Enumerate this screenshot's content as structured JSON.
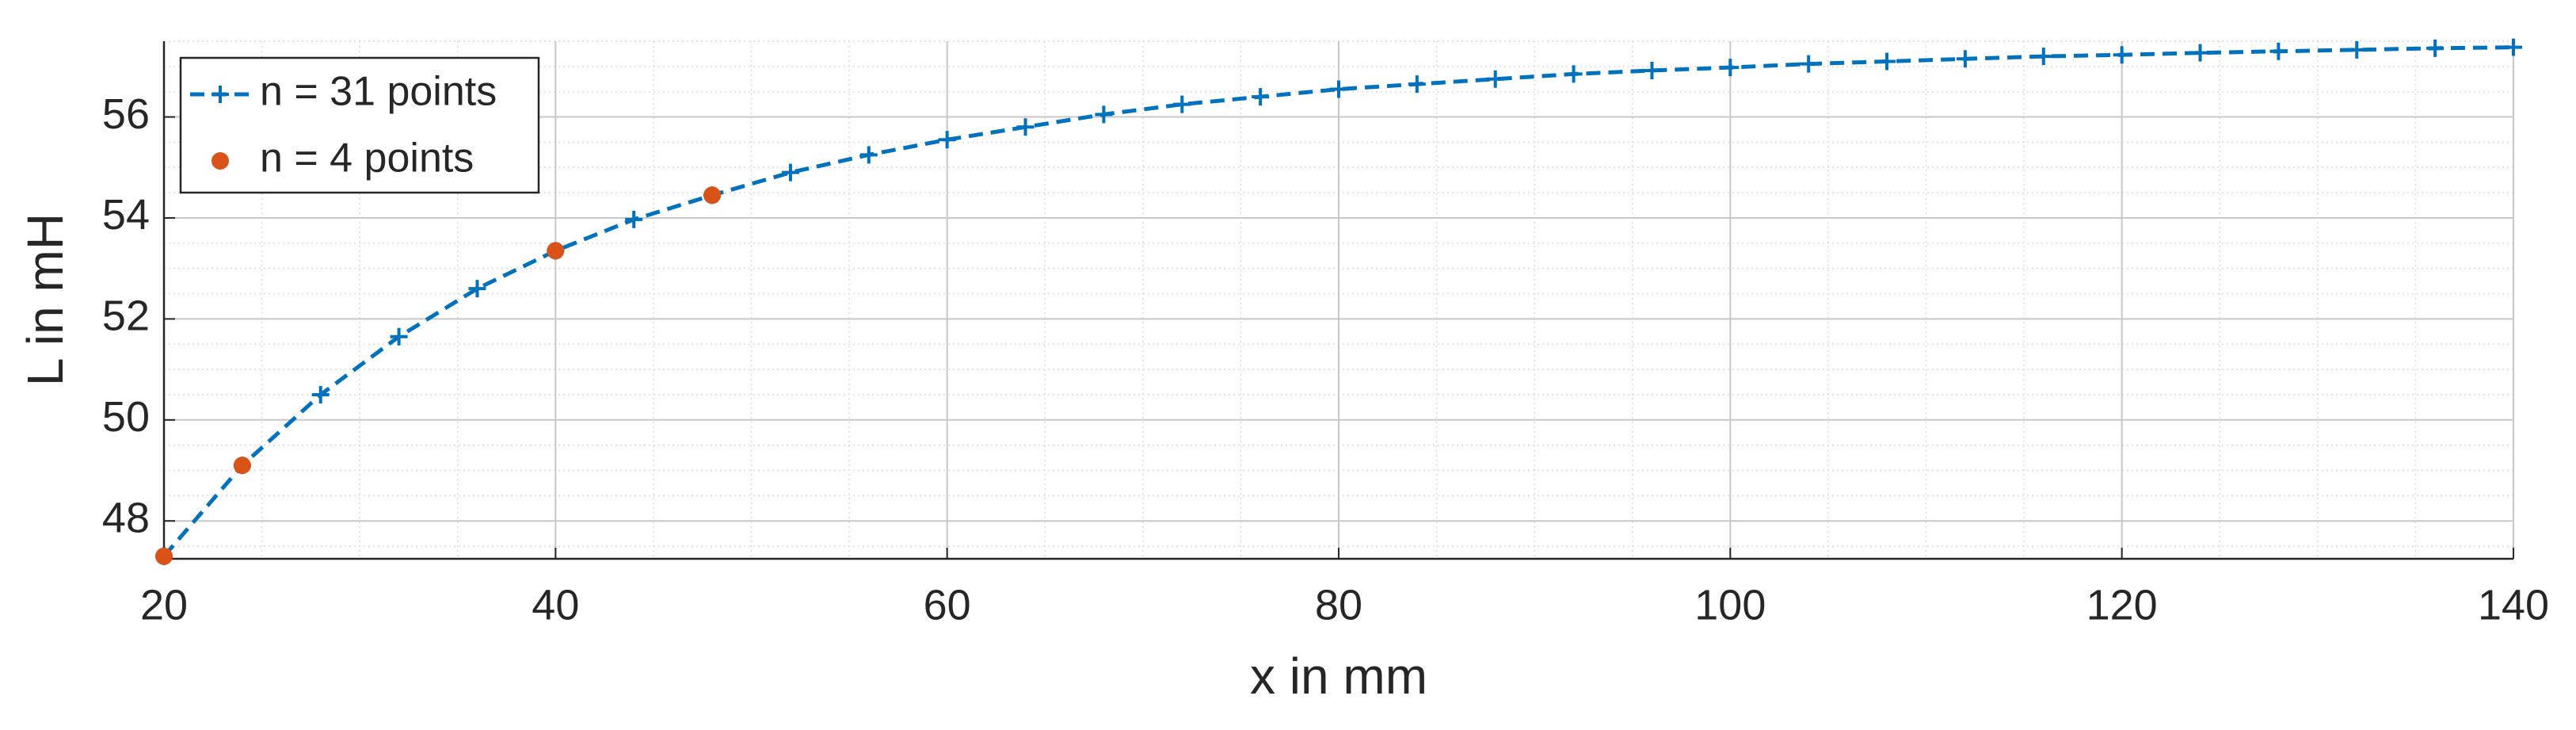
{
  "chart_data": {
    "type": "line",
    "xlabel": "x in mm",
    "ylabel": "L in mH",
    "xlim": [
      20,
      140
    ],
    "xticks": [
      20,
      40,
      60,
      80,
      100,
      120,
      140
    ],
    "ylim": [
      47.25,
      57.5
    ],
    "yticks": [
      48,
      50,
      52,
      54,
      56
    ],
    "grid": true,
    "minor_grid": true,
    "legend": "upper left",
    "series": [
      {
        "name": "n = 31 points",
        "color": "#0072bd",
        "linestyle": "--",
        "marker": "+",
        "x": [
          20,
          24,
          28,
          32,
          36,
          40,
          44,
          48,
          52,
          56,
          60,
          64,
          68,
          72,
          76,
          80,
          84,
          88,
          92,
          96,
          100,
          104,
          108,
          112,
          116,
          120,
          124,
          128,
          132,
          136,
          140
        ],
        "values": [
          47.3,
          49.1,
          50.5,
          51.65,
          52.6,
          53.35,
          53.97,
          54.45,
          54.9,
          55.25,
          55.55,
          55.8,
          56.05,
          56.25,
          56.4,
          56.55,
          56.65,
          56.75,
          56.85,
          56.92,
          56.98,
          57.05,
          57.1,
          57.15,
          57.2,
          57.23,
          57.27,
          57.3,
          57.33,
          57.36,
          57.38
        ]
      },
      {
        "name": "n = 4 points",
        "color": "#d95319",
        "linestyle": "none",
        "marker": "o",
        "x": [
          20,
          24,
          40,
          48
        ],
        "values": [
          47.3,
          49.1,
          53.35,
          54.45
        ]
      }
    ]
  }
}
